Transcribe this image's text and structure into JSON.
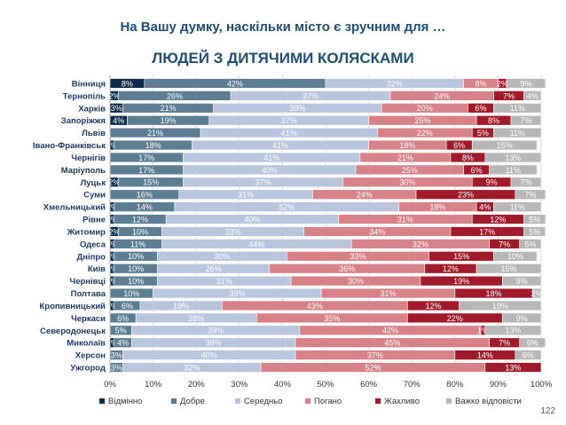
{
  "title_line1": "На Вашу думку, наскільки місто є зручним для …",
  "title_line2": "ЛЮДЕЙ З ДИТЯЧИМИ КОЛЯСКАМИ",
  "page_number": "122",
  "chart_data": {
    "type": "bar",
    "orientation": "horizontal",
    "stacked": true,
    "percent": true,
    "xlim": [
      0,
      100
    ],
    "xticks": [
      "0%",
      "10%",
      "20%",
      "30%",
      "40%",
      "50%",
      "60%",
      "70%",
      "80%",
      "90%",
      "100%"
    ],
    "grid": true,
    "legend_position": "bottom",
    "categories": [
      "Вінниця",
      "Тернопіль",
      "Харків",
      "Запоріжжя",
      "Львів",
      "Івано-Франківськ",
      "Чернігів",
      "Маріуполь",
      "Луцьк",
      "Суми",
      "Хмельницький",
      "Рівне",
      "Житомир",
      "Одеса",
      "Дніпро",
      "Київ",
      "Чернівці",
      "Полтава",
      "Кропивницький",
      "Черкаси",
      "Северодонецьк",
      "Миколаїв",
      "Херсон",
      "Ужгород"
    ],
    "series": [
      {
        "name": "Відмінно",
        "color": "#0e2d4a",
        "values": [
          8,
          2,
          3,
          4,
          0,
          1,
          0,
          0,
          2,
          0,
          1,
          1,
          2,
          1,
          1,
          1,
          1,
          0,
          1,
          0,
          0,
          1,
          0,
          0
        ]
      },
      {
        "name": "Добре",
        "color": "#5d7d93",
        "values": [
          42,
          26,
          21,
          19,
          21,
          18,
          17,
          17,
          15,
          16,
          14,
          12,
          10,
          11,
          10,
          10,
          10,
          10,
          6,
          6,
          5,
          4,
          3,
          3
        ]
      },
      {
        "name": "Середньо",
        "color": "#b9c5dd",
        "values": [
          32,
          37,
          39,
          37,
          41,
          41,
          41,
          40,
          37,
          31,
          52,
          40,
          33,
          44,
          30,
          26,
          31,
          39,
          19,
          28,
          39,
          38,
          40,
          32
        ]
      },
      {
        "name": "Погано",
        "color": "#d78288",
        "values": [
          8,
          24,
          20,
          25,
          22,
          18,
          21,
          25,
          30,
          24,
          18,
          31,
          34,
          32,
          33,
          36,
          30,
          31,
          43,
          35,
          42,
          45,
          37,
          52
        ]
      },
      {
        "name": "Жахливо",
        "color": "#a01a2c",
        "values": [
          2,
          7,
          6,
          8,
          5,
          6,
          8,
          6,
          9,
          23,
          4,
          12,
          17,
          7,
          15,
          12,
          19,
          18,
          12,
          22,
          1,
          7,
          14,
          13
        ]
      },
      {
        "name": "Важко відповісти",
        "color": "#b7b7b7",
        "values": [
          9,
          4,
          11,
          7,
          11,
          15,
          13,
          11,
          7,
          7,
          11,
          5,
          5,
          5,
          10,
          15,
          9,
          2,
          19,
          9,
          13,
          6,
          6,
          0
        ]
      }
    ]
  }
}
